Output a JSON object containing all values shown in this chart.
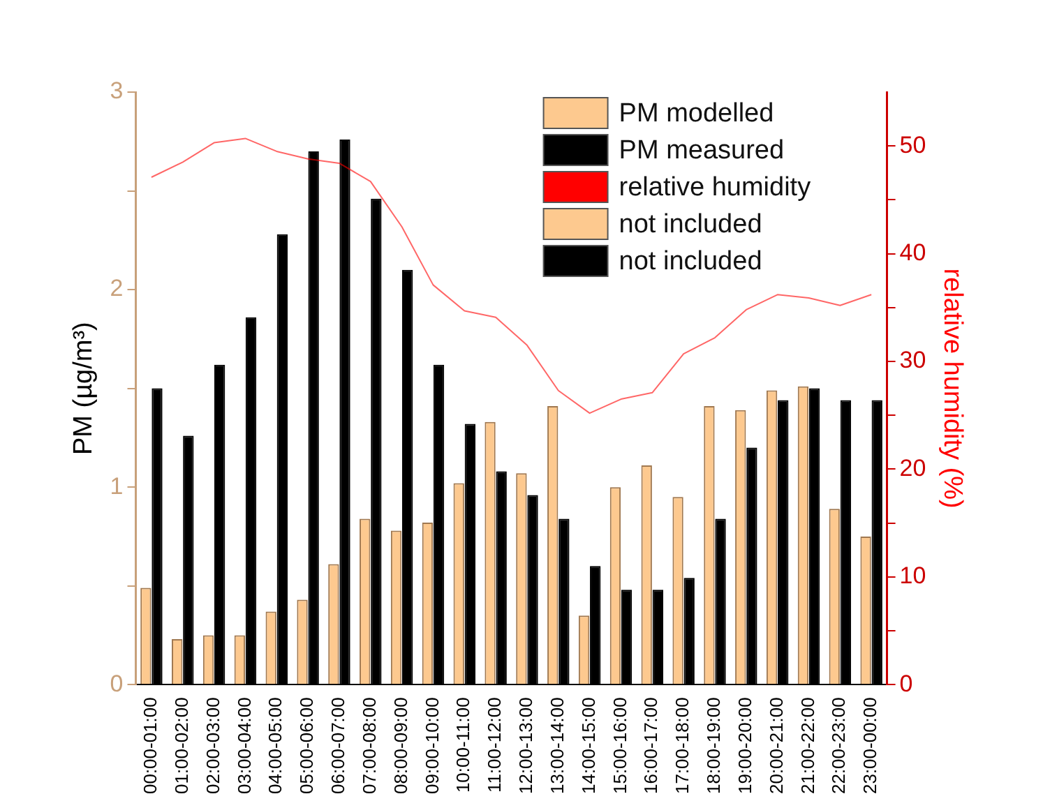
{
  "chart_data": {
    "type": "bar",
    "ylabel": "PM (µg/m³)",
    "y2label": "relative humidity (%)",
    "categories": [
      "00:00-01:00",
      "01:00-02:00",
      "02:00-03:00",
      "03:00-04:00",
      "04:00-05:00",
      "05:00-06:00",
      "06:00-07:00",
      "07:00-08:00",
      "08:00-09:00",
      "09:00-10:00",
      "10:00-11:00",
      "11:00-12:00",
      "12:00-13:00",
      "13:00-14:00",
      "14:00-15:00",
      "15:00-16:00",
      "16:00-17:00",
      "17:00-18:00",
      "18:00-19:00",
      "19:00-20:00",
      "20:00-21:00",
      "21:00-22:00",
      "22:00-23:00",
      "23:00-00:00"
    ],
    "series": [
      {
        "name": "PM modelled",
        "color": "#fdc98f",
        "values": [
          null,
          null,
          null,
          null,
          null,
          null,
          null,
          null,
          null,
          null,
          1.02,
          1.33,
          1.07,
          1.41,
          0.35,
          1.0,
          1.11,
          0.95,
          1.41,
          1.39,
          1.49,
          1.51,
          0.89,
          0.75
        ]
      },
      {
        "name": "PM measured",
        "color": "#000000",
        "values": [
          null,
          null,
          null,
          null,
          null,
          null,
          null,
          null,
          null,
          null,
          1.32,
          1.08,
          0.96,
          0.84,
          0.6,
          0.48,
          0.48,
          0.54,
          0.84,
          1.2,
          1.44,
          1.5,
          1.44,
          1.44
        ]
      },
      {
        "name": "relative humidity",
        "type": "line",
        "axis": "y2",
        "color": "#ff0000",
        "values": [
          47.1,
          48.5,
          50.3,
          50.7,
          49.5,
          48.8,
          48.4,
          46.7,
          42.5,
          37.1,
          34.7,
          34.1,
          31.5,
          27.3,
          25.2,
          26.5,
          27.1,
          30.7,
          32.2,
          34.8,
          36.2,
          35.9,
          35.2,
          36.2
        ]
      },
      {
        "name": "not included",
        "color": "#fdc98f",
        "values": [
          0.49,
          0.23,
          0.25,
          0.25,
          0.37,
          0.43,
          0.61,
          0.84,
          0.78,
          0.82,
          null,
          null,
          null,
          null,
          null,
          null,
          null,
          null,
          null,
          null,
          null,
          null,
          null,
          null
        ]
      },
      {
        "name": "not included",
        "color": "#000000",
        "values": [
          1.5,
          1.26,
          1.62,
          1.86,
          2.28,
          2.7,
          2.76,
          2.46,
          2.1,
          1.62,
          null,
          null,
          null,
          null,
          null,
          null,
          null,
          null,
          null,
          null,
          null,
          null,
          null,
          null
        ]
      }
    ],
    "ylim": [
      0,
      3
    ],
    "yticks": [
      0,
      {
        "value": 0.5,
        "label": null
      },
      1,
      {
        "value": 1.5,
        "label": null
      },
      2,
      {
        "value": 2.5,
        "label": null
      },
      3
    ],
    "y2lim": [
      0,
      55
    ],
    "y2ticks": [
      0,
      {
        "value": 5,
        "label": null
      },
      10,
      {
        "value": 15,
        "label": null
      },
      20,
      {
        "value": 25,
        "label": null
      },
      30,
      {
        "value": 35,
        "label": null
      },
      40,
      {
        "value": 45,
        "label": null
      },
      50
    ],
    "grid": false,
    "legend": "top right"
  }
}
